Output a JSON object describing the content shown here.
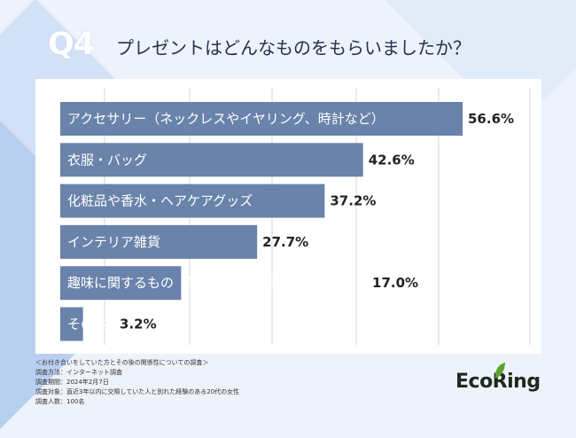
{
  "header": {
    "badge": "Q4",
    "question": "プレゼントはどんなものをもらいましたか？"
  },
  "chart_data": {
    "type": "bar",
    "orientation": "horizontal",
    "categories": [
      "アクセサリー（ネックレスやイヤリング、時計など）",
      "衣服・バッグ",
      "化粧品や香水・ヘアケアグッズ",
      "インテリア雑貨",
      "趣味に関するもの（調理器具やアウトドア用品）",
      "その他"
    ],
    "values": [
      56.6,
      42.6,
      37.2,
      27.7,
      17.0,
      3.2
    ],
    "value_labels": [
      "56.6%",
      "42.6%",
      "37.2%",
      "27.7%",
      "17.0%",
      "3.2%"
    ],
    "xlim": [
      0,
      60
    ],
    "grid": true,
    "bar_color": "#6a83aa"
  },
  "notes": [
    "＜お付き合いをしていた方とその後の関係性についての調査＞",
    "調査方法：インターネット調査",
    "調査期間：2024年2月7日",
    "調査対象：直近3年以内に交際していた人と別れた経験のある20代の女性",
    "調査人数：100名"
  ],
  "logo": {
    "text": "EcoRing",
    "leaf_color": "#5aa52f"
  }
}
